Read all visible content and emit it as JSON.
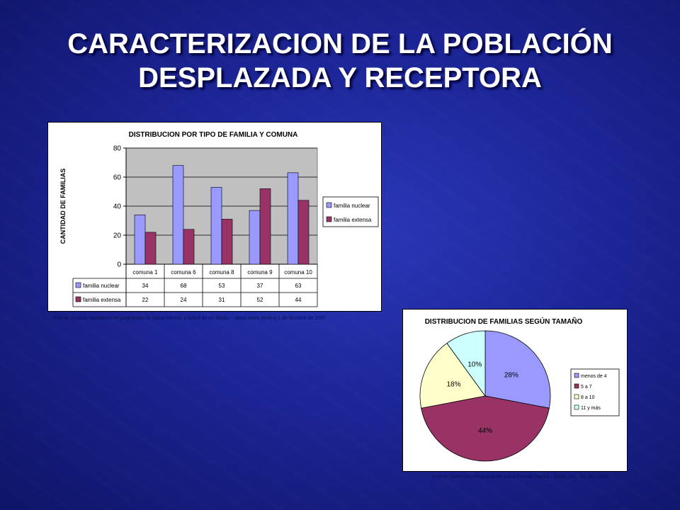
{
  "slide": {
    "title_line1": "CARACTERIZACION DE LA POBLACIÓN",
    "title_line2": "DESPLAZADA Y RECEPTORA"
  },
  "colors": {
    "nuclear": "#9999ff",
    "extensa": "#993366",
    "pie_menos4": "#9999ff",
    "pie_5a7": "#993366",
    "pie_8a10": "#ffffcc",
    "pie_11mas": "#ccffff",
    "plot_bg": "#c0c0c0"
  },
  "chart_data": [
    {
      "type": "bar",
      "title": "DISTRIBUCION POR TIPO DE FAMILIA Y COMUNA",
      "xlabel": "",
      "ylabel": "CANTIDAD DE FAMILIAS",
      "categories": [
        "comuna 1",
        "comuna 6",
        "comuna 8",
        "comuna 9",
        "comuna 10"
      ],
      "series": [
        {
          "name": "familia nuclear",
          "values": [
            34,
            68,
            53,
            37,
            63
          ]
        },
        {
          "name": "familia extensa",
          "values": [
            22,
            24,
            31,
            52,
            44
          ]
        }
      ],
      "ylim": [
        0,
        80
      ],
      "yticks": [
        0,
        20,
        40,
        60,
        80
      ],
      "grid": true,
      "legend": "right",
      "data_table": true,
      "source": "Fuente: Grupos reportaron en programas de Salud Mental, y Salud de en Medio – datos entre Junio y 1 de Octubre de 2007"
    },
    {
      "type": "pie",
      "title": "DISTRIBUCION DE FAMILIAS SEGÚN TAMAÑO",
      "labels": [
        "menos de 4",
        "5 a 7",
        "8 a 10",
        "11 y más"
      ],
      "values": [
        28,
        44,
        18,
        10
      ],
      "value_labels": [
        "28%",
        "44%",
        "18%",
        "10%"
      ],
      "legend": "right",
      "source": "Fuente: Selección Programa de Salud Familia Nueva – Base, Jun. 30. Oct. 2007"
    }
  ]
}
